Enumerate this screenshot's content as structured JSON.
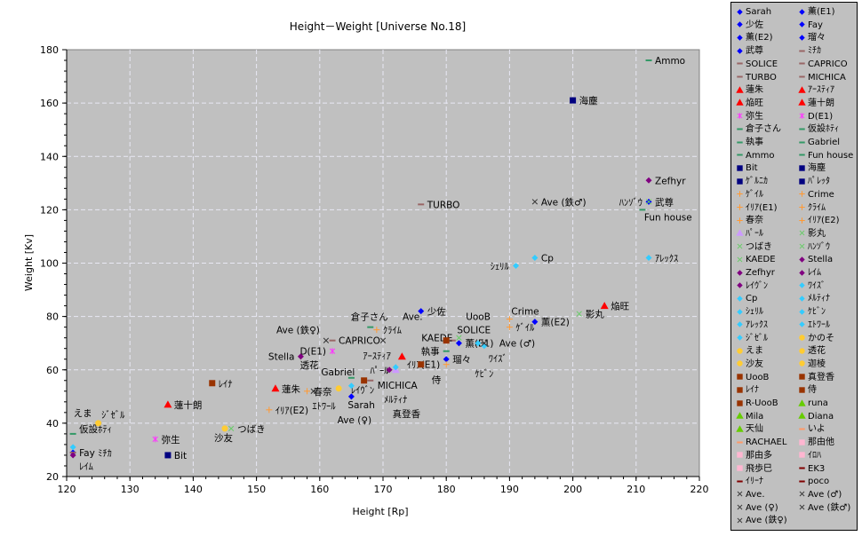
{
  "chart_data": {
    "type": "scatter",
    "title": "Height－Weight [Universe No.18]",
    "xlabel": "Height [Rp]",
    "ylabel": "Weight [Kv]",
    "xlim": [
      120,
      220
    ],
    "ylim": [
      20,
      180
    ],
    "xticks": [
      120,
      130,
      140,
      150,
      160,
      170,
      180,
      190,
      200,
      210,
      220
    ],
    "yticks": [
      20,
      40,
      60,
      80,
      100,
      120,
      140,
      160,
      180
    ],
    "grid": true,
    "legend_position": "right",
    "series": [
      {
        "name": "Sarah",
        "marker": "diamond",
        "color": "#0000ff",
        "x": 165,
        "y": 50
      },
      {
        "name": "薫(E1)",
        "marker": "diamond",
        "color": "#0000ff",
        "x": 182,
        "y": 70
      },
      {
        "name": "少佐",
        "marker": "diamond",
        "color": "#0000ff",
        "x": 176,
        "y": 82
      },
      {
        "name": "Fay",
        "marker": "diamond",
        "color": "#0000ff",
        "x": 121,
        "y": 29
      },
      {
        "name": "薫(E2)",
        "marker": "diamond",
        "color": "#0000ff",
        "x": 194,
        "y": 78
      },
      {
        "name": "瑠々",
        "marker": "diamond",
        "color": "#0000ff",
        "x": 180,
        "y": 64
      },
      {
        "name": "武尊",
        "marker": "diamond",
        "color": "#0000ff",
        "x": 212,
        "y": 123
      },
      {
        "name": "ﾐﾁｶ",
        "marker": "dash",
        "color": "#996666",
        "x": 121,
        "y": 29
      },
      {
        "name": "SOLICE",
        "marker": "dash",
        "color": "#996666",
        "x": 181,
        "y": 71
      },
      {
        "name": "CAPRICO",
        "marker": "dash",
        "color": "#996666",
        "x": 162,
        "y": 71
      },
      {
        "name": "TURBO",
        "marker": "dash",
        "color": "#996666",
        "x": 176,
        "y": 122
      },
      {
        "name": "MICHICA",
        "marker": "dash",
        "color": "#996666",
        "x": 168,
        "y": 56
      },
      {
        "name": "蓮朱",
        "marker": "triangle",
        "color": "#ff0000",
        "x": 153,
        "y": 53
      },
      {
        "name": "ｱｰｽﾃｨｱ",
        "marker": "triangle",
        "color": "#ff0000",
        "x": 173,
        "y": 65
      },
      {
        "name": "焔旺",
        "marker": "triangle",
        "color": "#ff0000",
        "x": 205,
        "y": 84
      },
      {
        "name": "蓮十朗",
        "marker": "triangle",
        "color": "#ff0000",
        "x": 136,
        "y": 47
      },
      {
        "name": "弥生",
        "marker": "asterisk",
        "color": "#ff33ff",
        "x": 134,
        "y": 34
      },
      {
        "name": "D(E1)",
        "marker": "asterisk",
        "color": "#ff33ff",
        "x": 162,
        "y": 67
      },
      {
        "name": "倉子さん",
        "marker": "dash",
        "color": "#339966",
        "x": 168,
        "y": 76
      },
      {
        "name": "仮設ﾎﾃｨ",
        "marker": "dash",
        "color": "#339966",
        "x": 121,
        "y": 36
      },
      {
        "name": "執事",
        "marker": "dash",
        "color": "#339966",
        "x": 180,
        "y": 67
      },
      {
        "name": "Gabriel",
        "marker": "dash",
        "color": "#339966",
        "x": 165,
        "y": 57
      },
      {
        "name": "Ammo",
        "marker": "dash",
        "color": "#339966",
        "x": 212,
        "y": 176
      },
      {
        "name": "Fun house",
        "marker": "dash",
        "color": "#339966",
        "x": 211,
        "y": 120
      },
      {
        "name": "Bit",
        "marker": "square",
        "color": "#000080",
        "x": 136,
        "y": 28
      },
      {
        "name": "海塵",
        "marker": "square",
        "color": "#000080",
        "x": 200,
        "y": 161
      },
      {
        "name": "ｹﾞﾙﾆｶ",
        "marker": "square",
        "color": "#000080"
      },
      {
        "name": "ﾊﾟﾚｯﾀ",
        "marker": "square",
        "color": "#000080"
      },
      {
        "name": "ｹﾞｲﾙ",
        "marker": "plus",
        "color": "#ff9933",
        "x": 190,
        "y": 76
      },
      {
        "name": "Crime",
        "marker": "plus",
        "color": "#ff9933",
        "x": 190,
        "y": 79
      },
      {
        "name": "ｲﾘｱ(E1)",
        "marker": "plus",
        "color": "#ff9933",
        "x": 180,
        "y": 62
      },
      {
        "name": "ｸﾗｲﾑ",
        "marker": "plus",
        "color": "#ff9933",
        "x": 169,
        "y": 75
      },
      {
        "name": "春奈",
        "marker": "plus",
        "color": "#ff9933",
        "x": 158,
        "y": 52
      },
      {
        "name": "ｲﾘｱ(E2)",
        "marker": "plus",
        "color": "#ff9933",
        "x": 152,
        "y": 45
      },
      {
        "name": "ﾊﾟｰﾙ",
        "marker": "triangle",
        "color": "#cc99ff",
        "x": 172,
        "y": 60
      },
      {
        "name": "影丸",
        "marker": "cross",
        "color": "#66cc66",
        "x": 201,
        "y": 81
      },
      {
        "name": "つばき",
        "marker": "cross",
        "color": "#66cc66",
        "x": 146,
        "y": 38
      },
      {
        "name": "ﾊﾝｿﾞｳ",
        "marker": "cross",
        "color": "#66cc66",
        "x": 212,
        "y": 123
      },
      {
        "name": "KAEDE",
        "marker": "cross",
        "color": "#66cc66",
        "x": 182,
        "y": 72
      },
      {
        "name": "Stella",
        "marker": "diamond",
        "color": "#800080",
        "x": 157,
        "y": 65
      },
      {
        "name": "Zefhyr",
        "marker": "diamond",
        "color": "#800080",
        "x": 212,
        "y": 131
      },
      {
        "name": "ﾚｲﾑ",
        "marker": "diamond",
        "color": "#800080",
        "x": 121,
        "y": 28
      },
      {
        "name": "ﾚｲｳﾞﾝ",
        "marker": "diamond",
        "color": "#800080",
        "x": 171,
        "y": 60
      },
      {
        "name": "ﾜｲｽﾞ",
        "marker": "diamond",
        "color": "#33ccff",
        "x": 185,
        "y": 70
      },
      {
        "name": "Cp",
        "marker": "diamond",
        "color": "#33ccff",
        "x": 194,
        "y": 102
      },
      {
        "name": "ﾒﾙﾃｨﾅ",
        "marker": "diamond",
        "color": "#33ccff",
        "x": 172,
        "y": 61
      },
      {
        "name": "ｼｪﾘﾙ",
        "marker": "diamond",
        "color": "#33ccff",
        "x": 191,
        "y": 99
      },
      {
        "name": "ｹﾋﾞﾝ",
        "marker": "diamond",
        "color": "#33ccff",
        "x": 186,
        "y": 69
      },
      {
        "name": "ｱﾚｯｸｽ",
        "marker": "diamond",
        "color": "#33ccff",
        "x": 212,
        "y": 102
      },
      {
        "name": "ｴﾄﾜｰﾙ",
        "marker": "diamond",
        "color": "#33ccff",
        "x": 165,
        "y": 54
      },
      {
        "name": "ｼﾞｾﾞﾙ",
        "marker": "diamond",
        "color": "#33ccff",
        "x": 121,
        "y": 31
      },
      {
        "name": "かのそ",
        "marker": "circle",
        "color": "#ffcc33"
      },
      {
        "name": "えま",
        "marker": "circle",
        "color": "#ffcc33",
        "x": 125,
        "y": 40
      },
      {
        "name": "透花",
        "marker": "circle",
        "color": "#ffcc33",
        "x": 163,
        "y": 53
      },
      {
        "name": "沙友",
        "marker": "circle",
        "color": "#ffcc33",
        "x": 145,
        "y": 38
      },
      {
        "name": "迦棱",
        "marker": "circle",
        "color": "#ffcc33"
      },
      {
        "name": "UooB",
        "marker": "square",
        "color": "#993300",
        "x": 180,
        "y": 71
      },
      {
        "name": "真登香",
        "marker": "square",
        "color": "#993300",
        "x": 167,
        "y": 56
      },
      {
        "name": "ﾚｲﾅ",
        "marker": "square",
        "color": "#993300",
        "x": 143,
        "y": 55
      },
      {
        "name": "侍",
        "marker": "square",
        "color": "#993300",
        "x": 176,
        "y": 62
      },
      {
        "name": "R-UooB",
        "marker": "square",
        "color": "#993300"
      },
      {
        "name": "runa",
        "marker": "triangle",
        "color": "#66cc00"
      },
      {
        "name": "Mila",
        "marker": "triangle",
        "color": "#66cc00"
      },
      {
        "name": "Diana",
        "marker": "triangle",
        "color": "#66cc00"
      },
      {
        "name": "天仙",
        "marker": "triangle",
        "color": "#66cc00"
      },
      {
        "name": "いよ",
        "marker": "dash",
        "color": "#ff9966"
      },
      {
        "name": "RACHAEL",
        "marker": "dash",
        "color": "#ff9966"
      },
      {
        "name": "那由他",
        "marker": "square",
        "color": "#ffb6d1"
      },
      {
        "name": "那由多",
        "marker": "square",
        "color": "#ffb6d1"
      },
      {
        "name": "ｲﾛﾊ",
        "marker": "square",
        "color": "#ffb6d1"
      },
      {
        "name": "飛歩巳",
        "marker": "square",
        "color": "#ffb6d1"
      },
      {
        "name": "EK3",
        "marker": "dash",
        "color": "#800000"
      },
      {
        "name": "ｲﾘｰﾅ",
        "marker": "dash",
        "color": "#800000"
      },
      {
        "name": "poco",
        "marker": "dash",
        "color": "#800000"
      },
      {
        "name": "Ave.",
        "marker": "x",
        "color": "#333333",
        "x": 170,
        "y": 71
      },
      {
        "name": "Ave (♂)",
        "marker": "x",
        "color": "#333333",
        "x": 186,
        "y": 70
      },
      {
        "name": "Ave (♀)",
        "marker": "x",
        "color": "#333333",
        "x": 159,
        "y": 52
      },
      {
        "name": "Ave (鉄♂)",
        "marker": "x",
        "color": "#333333",
        "x": 194,
        "y": 123
      },
      {
        "name": "Ave (鉄♀)",
        "marker": "x",
        "color": "#333333",
        "x": 161,
        "y": 71
      }
    ]
  }
}
